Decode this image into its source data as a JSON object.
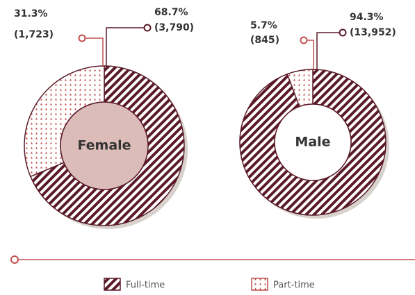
{
  "chart_data": [
    {
      "type": "pie",
      "title": "Female",
      "categories": [
        "Full-time",
        "Part-time"
      ],
      "values": [
        68.7,
        31.3
      ],
      "value_labels": [
        "68.7%",
        "31.3%"
      ],
      "counts": [
        3790,
        1723
      ],
      "count_labels": [
        "(3,790)",
        "(1,723)"
      ],
      "colors": [
        "#5a1a28",
        "#c0504d"
      ],
      "center_color": "#dcbcb9"
    },
    {
      "type": "pie",
      "title": "Male",
      "categories": [
        "Full-time",
        "Part-time"
      ],
      "values": [
        94.3,
        5.7
      ],
      "value_labels": [
        "94.3%",
        "5.7%"
      ],
      "counts": [
        13952,
        845
      ],
      "count_labels": [
        "(13,952)",
        "(845)"
      ],
      "colors": [
        "#5a1a28",
        "#c0504d"
      ],
      "center_color": "#ffffff"
    }
  ]
}
